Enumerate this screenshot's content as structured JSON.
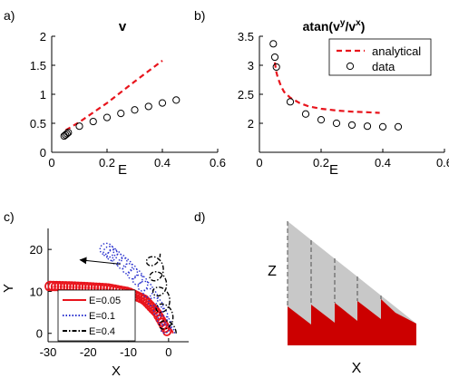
{
  "chart_data": [
    {
      "panel_label": "a)",
      "type": "line",
      "title": "v",
      "xlabel": "E",
      "ylabel": "",
      "xlim": [
        0,
        0.6
      ],
      "ylim": [
        0,
        2
      ],
      "xticks": [
        0,
        0.2,
        0.4,
        0.6
      ],
      "yticks": [
        0,
        0.5,
        1,
        1.5,
        2
      ],
      "xtick_labels": [
        "0",
        "0.2",
        "0.4",
        "0.6"
      ],
      "ytick_labels": [
        "0",
        "0.5",
        "1",
        "1.5",
        "2"
      ],
      "grid": false,
      "series": [
        {
          "kind": "line",
          "color": "#e8141c",
          "style": "dashed",
          "x": [
            0.05,
            0.1,
            0.2,
            0.3,
            0.4
          ],
          "y": [
            0.38,
            0.52,
            0.85,
            1.22,
            1.58
          ]
        },
        {
          "kind": "marker",
          "color": "#000000",
          "x": [
            0.045,
            0.05,
            0.055,
            0.06,
            0.1,
            0.15,
            0.2,
            0.25,
            0.3,
            0.35,
            0.4,
            0.45
          ],
          "y": [
            0.28,
            0.3,
            0.32,
            0.34,
            0.45,
            0.53,
            0.6,
            0.67,
            0.73,
            0.79,
            0.85,
            0.9
          ]
        }
      ]
    },
    {
      "panel_label": "b)",
      "type": "line",
      "title_base": "atan(v",
      "title_sup1": "y",
      "title_mid": "/v",
      "title_sup2": "x",
      "title_end": ")",
      "xlabel": "E",
      "ylabel": "",
      "xlim": [
        0,
        0.6
      ],
      "ylim": [
        1.5,
        3.5
      ],
      "xticks": [
        0,
        0.2,
        0.4,
        0.6
      ],
      "yticks": [
        2,
        2.5,
        3,
        3.5
      ],
      "xtick_labels": [
        "0",
        "0.2",
        "0.4",
        "0.6"
      ],
      "ytick_labels": [
        "2",
        "2.5",
        "3",
        "3.5"
      ],
      "grid": false,
      "legend_position": "top-right",
      "series": [
        {
          "name": "analytical",
          "kind": "line",
          "color": "#e8141c",
          "style": "dashed",
          "x": [
            0.05,
            0.055,
            0.06,
            0.07,
            0.08,
            0.1,
            0.13,
            0.16,
            0.2,
            0.25,
            0.3,
            0.35,
            0.39
          ],
          "y": [
            3.05,
            2.88,
            2.78,
            2.64,
            2.54,
            2.44,
            2.35,
            2.29,
            2.25,
            2.22,
            2.2,
            2.19,
            2.18
          ]
        },
        {
          "name": "data",
          "kind": "marker",
          "color": "#000000",
          "x": [
            0.045,
            0.05,
            0.055,
            0.1,
            0.15,
            0.2,
            0.25,
            0.3,
            0.35,
            0.4,
            0.45
          ],
          "y": [
            3.37,
            3.14,
            2.97,
            2.37,
            2.16,
            2.06,
            2.0,
            1.97,
            1.95,
            1.94,
            1.94
          ]
        }
      ]
    },
    {
      "panel_label": "c)",
      "type": "line",
      "xlabel": "X",
      "ylabel": "Y",
      "xlim": [
        -30,
        5
      ],
      "ylim": [
        -2,
        25
      ],
      "xticks": [
        -30,
        -20,
        -10,
        0
      ],
      "yticks": [
        0,
        10,
        20
      ],
      "xtick_labels": [
        "-30",
        "-20",
        "-10",
        "0"
      ],
      "ytick_labels": [
        "0",
        "10",
        "20"
      ],
      "grid": false,
      "legend_position": "bottom-left",
      "series": [
        {
          "name": "E=0.05",
          "color": "#e8141c",
          "style": "solid",
          "path_x": [
            0,
            -3,
            -6,
            -10,
            -15,
            -20,
            -25,
            -30
          ],
          "path_y": [
            0,
            5,
            8,
            9.8,
            10.7,
            11.0,
            11.2,
            11.3
          ],
          "loop_radius": 1.05,
          "loops": 46
        },
        {
          "name": "E=0.1",
          "color": "#2a32ce",
          "style": "dotted",
          "path_x": [
            0,
            -2,
            -5,
            -8,
            -11,
            -14,
            -16
          ],
          "path_y": [
            0,
            5,
            10,
            13.5,
            16.5,
            18.8,
            20.5
          ],
          "loop_radius": 1.5,
          "loops": 14
        },
        {
          "name": "E=0.4",
          "color": "#000000",
          "style": "dash-dot",
          "path_x": [
            0,
            -1,
            -2,
            -3,
            -4
          ],
          "path_y": [
            0,
            5,
            10,
            14.5,
            19
          ],
          "loop_radius": 1.9,
          "loops": 5
        }
      ],
      "arrow": {
        "from": [
          -12,
          16.5
        ],
        "to": [
          -22,
          17.5
        ]
      }
    },
    {
      "panel_label": "d)",
      "type": "diagram",
      "xlabel": "X",
      "ylabel": "Z",
      "colors": {
        "wedge": "#c8c8c8",
        "solid": "#cc0000",
        "dashed_line": "#505050"
      }
    }
  ]
}
